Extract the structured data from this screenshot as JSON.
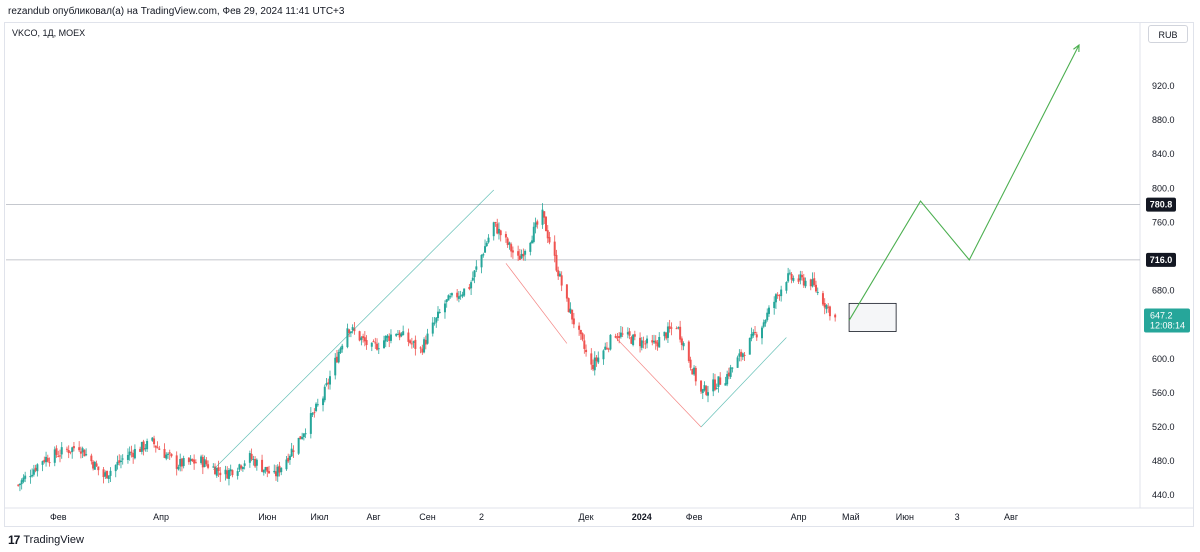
{
  "header": {
    "text": "rezandub опубликовал(а) на TradingView.com, Фев 29, 2024 11:41 UTC+3"
  },
  "symbol": "VKCO, 1Д, MOEX",
  "currency": "RUB",
  "footer": {
    "brand": "TradingView",
    "logo_icon": "tradingview-logo-icon"
  },
  "colors": {
    "up": "#26a69a",
    "down": "#ef5350",
    "projection": "#4caf50",
    "hline": "#b2b5be",
    "price_badge": "#26a69a"
  },
  "chart_data": {
    "type": "candlestick",
    "title": "",
    "ylim": [
      425,
      995
    ],
    "y_ticks": [
      920.0,
      880.0,
      840.0,
      800.0,
      760.0,
      680.0,
      600.0,
      560.0,
      520.0,
      480.0,
      440.0
    ],
    "y_tick_labels": [
      "920.0",
      "880.0",
      "840.0",
      "800.0",
      "760.0",
      "680.0",
      "600.0",
      "560.0",
      "520.0",
      "480.0",
      "440.0"
    ],
    "x_ticks": [
      "Фев",
      "Апр",
      "Июн",
      "Июл",
      "Авг",
      "Сен",
      "2",
      "Дек",
      "2024",
      "Фев",
      "Апр",
      "Май",
      "Июн",
      "3",
      "Авг"
    ],
    "horizontal_levels": [
      {
        "value": 780.8,
        "label": "780.8"
      },
      {
        "value": 716.0,
        "label": "716.0"
      }
    ],
    "last_price": {
      "value": 647.2,
      "label": "647.2",
      "countdown": "12:08:14"
    },
    "price_path": [
      [
        "2023-01-09",
        452
      ],
      [
        "2023-01-23",
        482
      ],
      [
        "2023-02-13",
        498
      ],
      [
        "2023-02-27",
        462
      ],
      [
        "2023-03-13",
        488
      ],
      [
        "2023-03-27",
        502
      ],
      [
        "2023-04-10",
        476
      ],
      [
        "2023-04-24",
        480
      ],
      [
        "2023-05-08",
        465
      ],
      [
        "2023-05-22",
        484
      ],
      [
        "2023-06-05",
        462
      ],
      [
        "2023-06-19",
        505
      ],
      [
        "2023-07-03",
        555
      ],
      [
        "2023-07-17",
        638
      ],
      [
        "2023-07-31",
        612
      ],
      [
        "2023-08-14",
        632
      ],
      [
        "2023-08-28",
        610
      ],
      [
        "2023-09-11",
        665
      ],
      [
        "2023-09-25",
        685
      ],
      [
        "2023-10-09",
        758
      ],
      [
        "2023-10-23",
        716
      ],
      [
        "2023-11-06",
        768
      ],
      [
        "2023-11-20",
        665
      ],
      [
        "2023-12-04",
        590
      ],
      [
        "2023-12-18",
        630
      ],
      [
        "2024-01-08",
        615
      ],
      [
        "2024-01-22",
        640
      ],
      [
        "2024-02-05",
        560
      ],
      [
        "2024-02-19",
        578
      ],
      [
        "2024-03-11",
        640
      ],
      [
        "2024-03-25",
        695
      ],
      [
        "2024-04-08",
        690
      ],
      [
        "2024-04-22",
        647
      ]
    ],
    "pattern_lines": [
      {
        "color": "up",
        "points": [
          [
            "2023-05-01",
            470
          ],
          [
            "2023-10-09",
            798
          ]
        ]
      },
      {
        "color": "down",
        "points": [
          [
            "2023-10-16",
            712
          ],
          [
            "2023-11-20",
            618
          ]
        ]
      },
      {
        "color": "down",
        "points": [
          [
            "2023-12-18",
            625
          ],
          [
            "2024-02-05",
            520
          ]
        ]
      },
      {
        "color": "up",
        "points": [
          [
            "2024-02-05",
            520
          ],
          [
            "2024-03-25",
            625
          ]
        ]
      }
    ],
    "projection": [
      [
        "2024-04-30",
        645
      ],
      [
        "2024-06-10",
        785
      ],
      [
        "2024-07-08",
        716
      ],
      [
        "2024-09-09",
        968
      ]
    ],
    "target_box": {
      "start": "2024-04-30",
      "end": "2024-05-27",
      "high": 665,
      "low": 632
    }
  }
}
